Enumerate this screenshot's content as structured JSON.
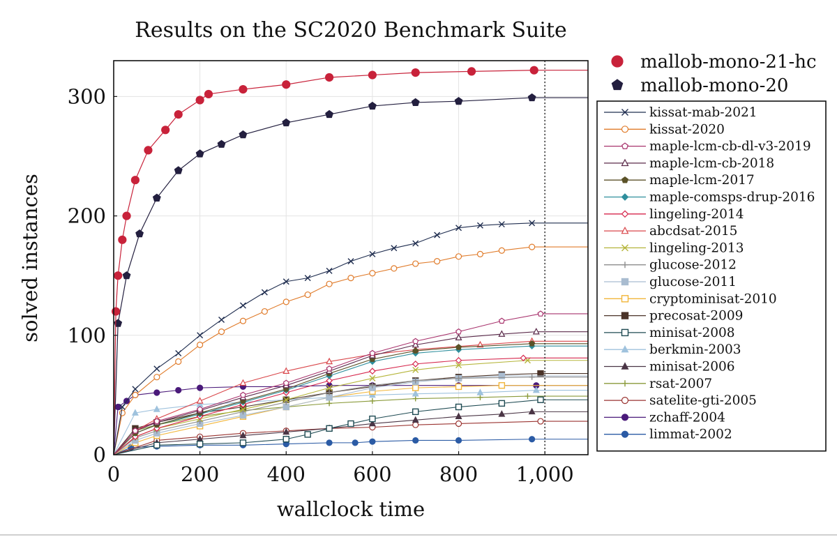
{
  "chart_data": {
    "type": "line",
    "title": "Results on the SC2020 Benchmark Suite",
    "xlabel": "wallclock time",
    "ylabel": "solved instances",
    "xlim": [
      0,
      1100
    ],
    "ylim": [
      0,
      330
    ],
    "xticks": [
      0,
      200,
      400,
      600,
      800,
      1000
    ],
    "xtick_labels": [
      "0",
      "200",
      "400",
      "600",
      "800",
      "1,000"
    ],
    "yticks": [
      0,
      100,
      200,
      300
    ],
    "ytick_labels": [
      "0",
      "100",
      "200",
      "300"
    ],
    "grid": true,
    "timeout_line_x": 1000,
    "legend_top": [
      "mallob-mono-21-hc",
      "mallob-mono-20"
    ],
    "legend_box_position": "right",
    "series": [
      {
        "name": "mallob-mono-21-hc",
        "color": "#c8223a",
        "marker": "circle-filled",
        "legend": "top",
        "size": "large",
        "points": [
          [
            0,
            0
          ],
          [
            5,
            120
          ],
          [
            10,
            150
          ],
          [
            20,
            180
          ],
          [
            30,
            200
          ],
          [
            50,
            230
          ],
          [
            80,
            255
          ],
          [
            120,
            272
          ],
          [
            150,
            285
          ],
          [
            200,
            297
          ],
          [
            220,
            302
          ],
          [
            300,
            306
          ],
          [
            400,
            310
          ],
          [
            500,
            316
          ],
          [
            600,
            318
          ],
          [
            700,
            320
          ],
          [
            830,
            321
          ],
          [
            975,
            322
          ]
        ]
      },
      {
        "name": "mallob-mono-20",
        "color": "#231f3f",
        "marker": "pentagon-filled",
        "legend": "top",
        "size": "large",
        "points": [
          [
            0,
            0
          ],
          [
            10,
            110
          ],
          [
            30,
            150
          ],
          [
            60,
            185
          ],
          [
            100,
            215
          ],
          [
            150,
            238
          ],
          [
            200,
            252
          ],
          [
            250,
            260
          ],
          [
            300,
            268
          ],
          [
            400,
            278
          ],
          [
            500,
            285
          ],
          [
            600,
            292
          ],
          [
            700,
            295
          ],
          [
            800,
            296
          ],
          [
            970,
            299
          ]
        ]
      },
      {
        "name": "kissat-mab-2021",
        "color": "#1f2d4f",
        "marker": "x",
        "points": [
          [
            0,
            0
          ],
          [
            20,
            40
          ],
          [
            50,
            55
          ],
          [
            100,
            72
          ],
          [
            150,
            85
          ],
          [
            200,
            100
          ],
          [
            250,
            113
          ],
          [
            300,
            125
          ],
          [
            350,
            136
          ],
          [
            400,
            145
          ],
          [
            450,
            148
          ],
          [
            500,
            154
          ],
          [
            550,
            162
          ],
          [
            600,
            168
          ],
          [
            650,
            173
          ],
          [
            700,
            177
          ],
          [
            750,
            184
          ],
          [
            800,
            190
          ],
          [
            850,
            192
          ],
          [
            900,
            193
          ],
          [
            970,
            194
          ]
        ]
      },
      {
        "name": "kissat-2020",
        "color": "#e07b2a",
        "marker": "circle-open",
        "points": [
          [
            0,
            0
          ],
          [
            20,
            35
          ],
          [
            50,
            50
          ],
          [
            100,
            65
          ],
          [
            150,
            78
          ],
          [
            200,
            92
          ],
          [
            250,
            103
          ],
          [
            300,
            112
          ],
          [
            350,
            120
          ],
          [
            400,
            128
          ],
          [
            450,
            134
          ],
          [
            500,
            143
          ],
          [
            550,
            148
          ],
          [
            600,
            152
          ],
          [
            650,
            156
          ],
          [
            700,
            160
          ],
          [
            750,
            162
          ],
          [
            800,
            166
          ],
          [
            850,
            168
          ],
          [
            900,
            171
          ],
          [
            970,
            174
          ]
        ]
      },
      {
        "name": "maple-lcm-cb-dl-v3-2019",
        "color": "#a8336d",
        "marker": "pentagon-open",
        "points": [
          [
            0,
            0
          ],
          [
            50,
            20
          ],
          [
            100,
            28
          ],
          [
            200,
            38
          ],
          [
            300,
            50
          ],
          [
            400,
            60
          ],
          [
            500,
            72
          ],
          [
            600,
            85
          ],
          [
            700,
            95
          ],
          [
            800,
            103
          ],
          [
            900,
            112
          ],
          [
            990,
            118
          ]
        ]
      },
      {
        "name": "maple-lcm-cb-2018",
        "color": "#5a2a4a",
        "marker": "triangle-open",
        "points": [
          [
            0,
            0
          ],
          [
            50,
            20
          ],
          [
            100,
            27
          ],
          [
            200,
            37
          ],
          [
            300,
            48
          ],
          [
            400,
            58
          ],
          [
            500,
            70
          ],
          [
            600,
            83
          ],
          [
            700,
            92
          ],
          [
            800,
            98
          ],
          [
            900,
            101
          ],
          [
            980,
            103
          ]
        ]
      },
      {
        "name": "maple-lcm-2017",
        "color": "#5b5228",
        "marker": "pentagon-filled",
        "points": [
          [
            0,
            0
          ],
          [
            50,
            18
          ],
          [
            100,
            25
          ],
          [
            200,
            35
          ],
          [
            300,
            45
          ],
          [
            400,
            55
          ],
          [
            500,
            68
          ],
          [
            600,
            80
          ],
          [
            700,
            87
          ],
          [
            800,
            90
          ],
          [
            970,
            93
          ]
        ]
      },
      {
        "name": "maple-comsps-drup-2016",
        "color": "#2f8f9d",
        "marker": "diamond-filled",
        "points": [
          [
            0,
            0
          ],
          [
            50,
            18
          ],
          [
            100,
            25
          ],
          [
            200,
            34
          ],
          [
            300,
            44
          ],
          [
            400,
            54
          ],
          [
            500,
            66
          ],
          [
            600,
            78
          ],
          [
            700,
            85
          ],
          [
            800,
            88
          ],
          [
            970,
            91
          ]
        ]
      },
      {
        "name": "lingeling-2014",
        "color": "#d6264c",
        "marker": "diamond-open",
        "points": [
          [
            0,
            0
          ],
          [
            50,
            15
          ],
          [
            100,
            22
          ],
          [
            200,
            32
          ],
          [
            300,
            42
          ],
          [
            400,
            52
          ],
          [
            500,
            62
          ],
          [
            600,
            70
          ],
          [
            700,
            76
          ],
          [
            800,
            79
          ],
          [
            950,
            81
          ]
        ]
      },
      {
        "name": "abcdsat-2015",
        "color": "#d9474b",
        "marker": "triangle-open",
        "points": [
          [
            0,
            0
          ],
          [
            50,
            20
          ],
          [
            100,
            30
          ],
          [
            200,
            45
          ],
          [
            300,
            60
          ],
          [
            400,
            70
          ],
          [
            500,
            78
          ],
          [
            600,
            84
          ],
          [
            700,
            88
          ],
          [
            850,
            92
          ],
          [
            970,
            95
          ]
        ]
      },
      {
        "name": "lingeling-2013",
        "color": "#b5b53a",
        "marker": "x",
        "points": [
          [
            0,
            0
          ],
          [
            50,
            15
          ],
          [
            100,
            22
          ],
          [
            200,
            30
          ],
          [
            300,
            38
          ],
          [
            400,
            46
          ],
          [
            500,
            56
          ],
          [
            600,
            64
          ],
          [
            700,
            71
          ],
          [
            800,
            75
          ],
          [
            960,
            79
          ]
        ]
      },
      {
        "name": "glucose-2012",
        "color": "#8c8c8c",
        "marker": "plus",
        "points": [
          [
            0,
            0
          ],
          [
            50,
            14
          ],
          [
            100,
            20
          ],
          [
            200,
            28
          ],
          [
            300,
            36
          ],
          [
            400,
            44
          ],
          [
            500,
            52
          ],
          [
            600,
            58
          ],
          [
            700,
            62
          ],
          [
            800,
            64
          ],
          [
            970,
            65
          ]
        ]
      },
      {
        "name": "glucose-2011",
        "color": "#a9bcd0",
        "marker": "square-filled",
        "points": [
          [
            0,
            0
          ],
          [
            50,
            12
          ],
          [
            100,
            18
          ],
          [
            200,
            26
          ],
          [
            300,
            33
          ],
          [
            400,
            40
          ],
          [
            500,
            48
          ],
          [
            600,
            56
          ],
          [
            700,
            61
          ],
          [
            800,
            64
          ],
          [
            900,
            66
          ]
        ]
      },
      {
        "name": "cryptominisat-2010",
        "color": "#f2b63a",
        "marker": "square-open",
        "points": [
          [
            0,
            0
          ],
          [
            50,
            10
          ],
          [
            100,
            16
          ],
          [
            200,
            24
          ],
          [
            300,
            32
          ],
          [
            400,
            40
          ],
          [
            500,
            48
          ],
          [
            600,
            53
          ],
          [
            700,
            56
          ],
          [
            800,
            57
          ],
          [
            900,
            58
          ]
        ]
      },
      {
        "name": "precosat-2009",
        "color": "#4a3328",
        "marker": "square-filled",
        "points": [
          [
            0,
            0
          ],
          [
            50,
            22
          ],
          [
            100,
            27
          ],
          [
            200,
            35
          ],
          [
            300,
            40
          ],
          [
            400,
            46
          ],
          [
            500,
            52
          ],
          [
            600,
            57
          ],
          [
            700,
            62
          ],
          [
            800,
            65
          ],
          [
            900,
            67
          ],
          [
            990,
            68
          ]
        ]
      },
      {
        "name": "minisat-2008",
        "color": "#1e4a52",
        "marker": "square-open",
        "points": [
          [
            0,
            0
          ],
          [
            100,
            8
          ],
          [
            200,
            9
          ],
          [
            300,
            10
          ],
          [
            400,
            13
          ],
          [
            450,
            17
          ],
          [
            500,
            22
          ],
          [
            550,
            26
          ],
          [
            600,
            30
          ],
          [
            700,
            36
          ],
          [
            800,
            40
          ],
          [
            900,
            43
          ],
          [
            990,
            46
          ]
        ]
      },
      {
        "name": "berkmin-2003",
        "color": "#9fc2dd",
        "marker": "triangle-filled",
        "points": [
          [
            0,
            0
          ],
          [
            50,
            35
          ],
          [
            100,
            38
          ],
          [
            200,
            42
          ],
          [
            300,
            44
          ],
          [
            400,
            46
          ],
          [
            500,
            48
          ],
          [
            600,
            50
          ],
          [
            700,
            51
          ],
          [
            850,
            52
          ],
          [
            980,
            54
          ]
        ]
      },
      {
        "name": "minisat-2006",
        "color": "#4a3545",
        "marker": "triangle-filled",
        "points": [
          [
            0,
            0
          ],
          [
            100,
            10
          ],
          [
            200,
            13
          ],
          [
            300,
            16
          ],
          [
            400,
            19
          ],
          [
            500,
            22
          ],
          [
            600,
            26
          ],
          [
            700,
            29
          ],
          [
            800,
            32
          ],
          [
            900,
            34
          ],
          [
            970,
            36
          ]
        ]
      },
      {
        "name": "rsat-2007",
        "color": "#8a9a3a",
        "marker": "plus",
        "points": [
          [
            0,
            0
          ],
          [
            50,
            20
          ],
          [
            100,
            25
          ],
          [
            200,
            32
          ],
          [
            300,
            37
          ],
          [
            400,
            40
          ],
          [
            500,
            43
          ],
          [
            600,
            45
          ],
          [
            700,
            47
          ],
          [
            850,
            48
          ],
          [
            960,
            49
          ]
        ]
      },
      {
        "name": "satelite-gti-2005",
        "color": "#9a3330",
        "marker": "circle-open",
        "points": [
          [
            0,
            0
          ],
          [
            100,
            12
          ],
          [
            200,
            15
          ],
          [
            300,
            18
          ],
          [
            400,
            20
          ],
          [
            500,
            22
          ],
          [
            600,
            23
          ],
          [
            700,
            25
          ],
          [
            800,
            26
          ],
          [
            990,
            28
          ]
        ]
      },
      {
        "name": "zchaff-2004",
        "color": "#4a1a7a",
        "marker": "circle-filled",
        "points": [
          [
            0,
            0
          ],
          [
            10,
            40
          ],
          [
            30,
            45
          ],
          [
            50,
            50
          ],
          [
            100,
            52
          ],
          [
            150,
            54
          ],
          [
            200,
            56
          ],
          [
            300,
            57
          ],
          [
            400,
            57
          ],
          [
            500,
            58
          ],
          [
            600,
            58
          ],
          [
            700,
            58
          ],
          [
            800,
            58
          ],
          [
            980,
            58
          ]
        ]
      },
      {
        "name": "limmat-2002",
        "color": "#2b5ba5",
        "marker": "circle-filled",
        "points": [
          [
            0,
            0
          ],
          [
            40,
            6
          ],
          [
            100,
            7
          ],
          [
            200,
            8
          ],
          [
            300,
            8
          ],
          [
            400,
            9
          ],
          [
            500,
            10
          ],
          [
            560,
            10
          ],
          [
            600,
            11
          ],
          [
            700,
            12
          ],
          [
            800,
            12
          ],
          [
            970,
            13
          ]
        ]
      }
    ]
  }
}
